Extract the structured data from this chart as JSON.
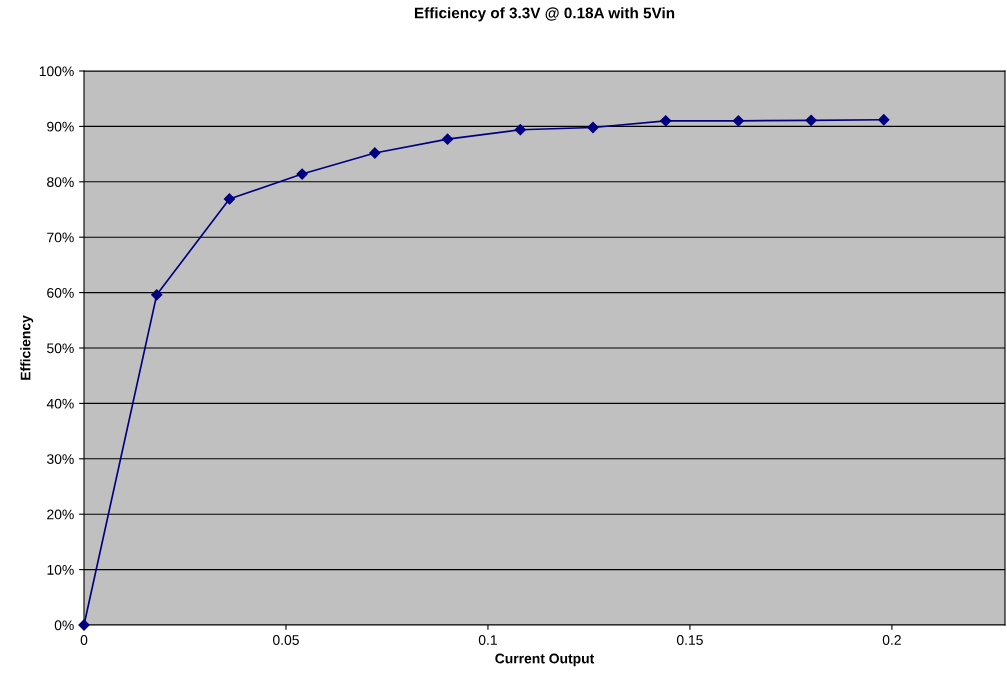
{
  "chart_data": {
    "type": "line",
    "title": "Efficiency of 3.3V @ 0.18A with 5Vin",
    "xlabel": "Current Output",
    "ylabel": "Efficiency",
    "x": [
      0,
      0.018,
      0.036,
      0.054,
      0.072,
      0.09,
      0.108,
      0.126,
      0.144,
      0.162,
      0.18,
      0.198
    ],
    "series": [
      {
        "color": "#000080",
        "values": [
          0,
          59.6,
          76.9,
          81.4,
          85.2,
          87.7,
          89.4,
          89.8,
          91.0,
          91.0,
          91.1,
          91.2
        ]
      }
    ],
    "xlim": [
      0,
      0.228
    ],
    "xticks": [
      0,
      0.05,
      {
        "value": 0.1,
        "label": "0.1"
      },
      0.15,
      {
        "value": 0.2,
        "label": "0.2"
      }
    ],
    "ylim": [
      0,
      100
    ],
    "yticks": [
      {
        "value": 0,
        "label": "0%"
      },
      {
        "value": 10,
        "label": "10%"
      },
      {
        "value": 20,
        "label": "20%"
      },
      {
        "value": 30,
        "label": "30%"
      },
      {
        "value": 40,
        "label": "40%"
      },
      {
        "value": 50,
        "label": "50%"
      },
      {
        "value": 60,
        "label": "60%"
      },
      {
        "value": 70,
        "label": "70%"
      },
      {
        "value": 80,
        "label": "80%"
      },
      {
        "value": 90,
        "label": "90%"
      },
      {
        "value": 100,
        "label": "100%"
      }
    ],
    "grid": "y",
    "marker": "diamond",
    "line_style": "solid",
    "legend": false
  }
}
